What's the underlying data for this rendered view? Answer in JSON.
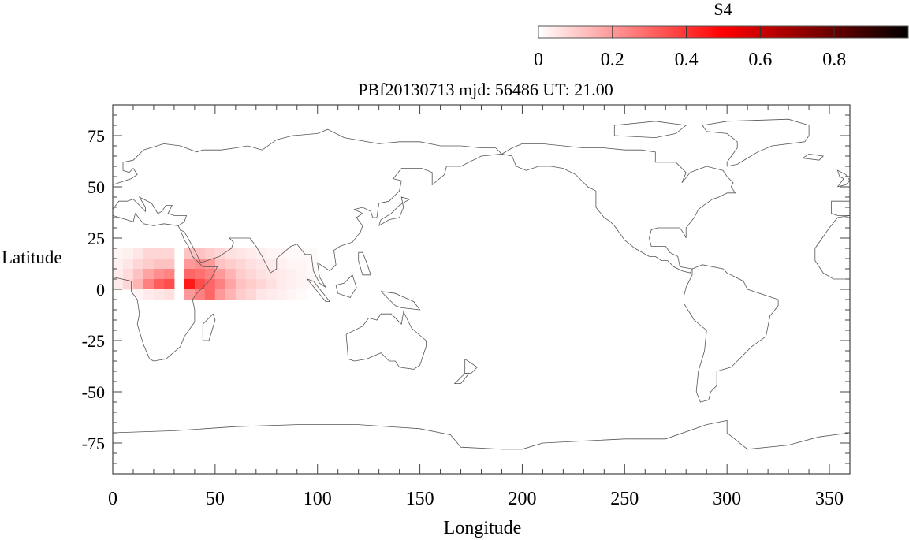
{
  "chart_data": {
    "type": "heatmap",
    "title": "PBf20130713  mjd: 56486  UT:  21.00",
    "xlabel": "Longitude",
    "ylabel": "Latitude",
    "xlim": [
      0,
      360
    ],
    "ylim": [
      -90,
      90
    ],
    "xticks": [
      0,
      50,
      100,
      150,
      200,
      250,
      300,
      350
    ],
    "yticks": [
      75,
      50,
      25,
      0,
      -25,
      -50,
      -75
    ],
    "colorbar": {
      "label": "S4",
      "range": [
        0,
        1
      ],
      "ticks": [
        "0",
        "0.2",
        "0.4",
        "0.6",
        "0.8"
      ],
      "colors": [
        "#ffffff",
        "#ff0000",
        "#000000"
      ]
    },
    "grid": {
      "lon_start": 0,
      "lon_step": 5,
      "lat_bands": [
        [
          15,
          20
        ],
        [
          10,
          15
        ],
        [
          5,
          10
        ],
        [
          0,
          5
        ],
        [
          -5,
          0
        ]
      ],
      "values": [
        [
          0.02,
          0.03,
          0.05,
          0.08,
          0.08,
          0.08,
          0,
          0.12,
          0.12,
          0.1,
          0.08,
          0.06,
          0.05,
          0.04,
          0.03,
          0.02,
          0.02,
          0.01,
          0.01,
          0.01
        ],
        [
          0.03,
          0.05,
          0.08,
          0.1,
          0.12,
          0.12,
          0,
          0.2,
          0.22,
          0.2,
          0.12,
          0.1,
          0.08,
          0.06,
          0.05,
          0.04,
          0.03,
          0.02,
          0.02,
          0.01
        ],
        [
          0.04,
          0.07,
          0.12,
          0.18,
          0.22,
          0.24,
          0,
          0.3,
          0.28,
          0.25,
          0.2,
          0.15,
          0.1,
          0.08,
          0.06,
          0.05,
          0.04,
          0.03,
          0.02,
          0.01
        ],
        [
          0.04,
          0.08,
          0.15,
          0.25,
          0.32,
          0.35,
          0,
          0.45,
          0.35,
          0.3,
          0.25,
          0.18,
          0.12,
          0.1,
          0.08,
          0.06,
          0.04,
          0.03,
          0.02,
          0.01
        ],
        [
          0,
          0,
          0.02,
          0.04,
          0.05,
          0.06,
          0,
          0.2,
          0.25,
          0.3,
          0.2,
          0.15,
          0.1,
          0.08,
          0.05,
          0.04,
          0.03,
          0.02,
          0.01,
          0
        ]
      ]
    }
  }
}
